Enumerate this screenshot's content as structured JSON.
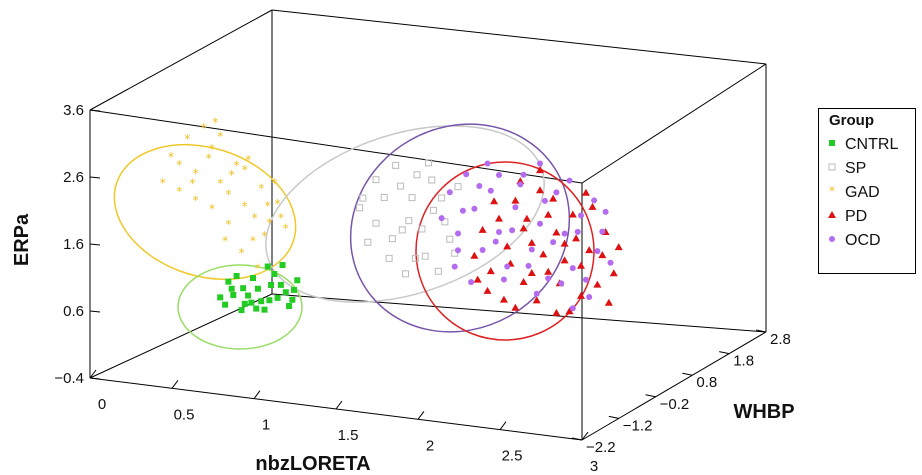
{
  "chart_data": {
    "type": "scatter",
    "mode": "3d",
    "xlabel": "nbzLORETA",
    "ylabel": "ERPa",
    "zlabel": "WHBP",
    "x_ticks": [
      "0",
      "0.5",
      "1",
      "1.5",
      "2",
      "2.5",
      "3"
    ],
    "y_ticks": [
      "−0.4",
      "0.6",
      "1.6",
      "2.6",
      "3.6"
    ],
    "z_ticks": [
      "−2.2",
      "−1.2",
      "−0.2",
      "0.8",
      "1.8",
      "2.8"
    ],
    "xlim": [
      0,
      3
    ],
    "ylim": [
      -0.4,
      3.6
    ],
    "zlim": [
      -2.2,
      2.8
    ],
    "legend_title": "Group",
    "legend_position": "right",
    "series": [
      {
        "name": "CNTRL",
        "color": "#22cc22",
        "marker": "square",
        "points": [
          [
            0.55,
            0.6
          ],
          [
            0.62,
            0.75
          ],
          [
            0.7,
            0.55
          ],
          [
            0.78,
            0.8
          ],
          [
            0.85,
            0.65
          ],
          [
            0.92,
            0.9
          ],
          [
            0.6,
            0.85
          ],
          [
            0.68,
            0.45
          ],
          [
            0.75,
            0.95
          ],
          [
            0.82,
            0.5
          ],
          [
            0.9,
            0.7
          ],
          [
            0.97,
            0.6
          ],
          [
            1.0,
            0.85
          ],
          [
            0.88,
            1.05
          ],
          [
            0.72,
            0.68
          ],
          [
            0.65,
            0.95
          ],
          [
            0.8,
            0.62
          ],
          [
            0.95,
            0.8
          ],
          [
            0.58,
            0.5
          ],
          [
            0.74,
            0.58
          ],
          [
            0.86,
            0.88
          ],
          [
            1.02,
            1.0
          ],
          [
            0.93,
            1.2
          ],
          [
            0.69,
            0.78
          ],
          [
            0.77,
            0.5
          ],
          [
            0.84,
            1.15
          ],
          [
            0.99,
            0.7
          ],
          [
            0.63,
            0.66
          ]
        ]
      },
      {
        "name": "SP",
        "color": "#bbbbbb",
        "marker": "open-square",
        "points": [
          [
            1.4,
            2.2
          ],
          [
            1.5,
            2.0
          ],
          [
            1.55,
            2.4
          ],
          [
            1.6,
            1.8
          ],
          [
            1.65,
            2.6
          ],
          [
            1.7,
            2.1
          ],
          [
            1.75,
            2.8
          ],
          [
            1.8,
            1.6
          ],
          [
            1.85,
            2.3
          ],
          [
            1.9,
            2.5
          ],
          [
            1.95,
            1.9
          ],
          [
            2.0,
            2.7
          ],
          [
            1.45,
            1.7
          ],
          [
            1.58,
            1.5
          ],
          [
            1.68,
            1.3
          ],
          [
            1.78,
            2.0
          ],
          [
            1.88,
            1.4
          ],
          [
            1.62,
            2.9
          ],
          [
            1.72,
            2.45
          ],
          [
            1.82,
            3.0
          ],
          [
            1.92,
            2.15
          ],
          [
            1.5,
            2.65
          ],
          [
            1.98,
            1.7
          ],
          [
            1.42,
            2.35
          ],
          [
            1.66,
            1.95
          ],
          [
            1.84,
            2.75
          ],
          [
            1.74,
            1.55
          ]
        ]
      },
      {
        "name": "GAD",
        "color": "#f0c020",
        "marker": "star",
        "points": [
          [
            0.2,
            2.2
          ],
          [
            0.3,
            2.5
          ],
          [
            0.4,
            2.0
          ],
          [
            0.5,
            2.8
          ],
          [
            0.55,
            2.3
          ],
          [
            0.6,
            1.7
          ],
          [
            0.65,
            2.6
          ],
          [
            0.7,
            2.0
          ],
          [
            0.75,
            1.5
          ],
          [
            0.8,
            2.3
          ],
          [
            0.85,
            1.8
          ],
          [
            0.9,
            2.1
          ],
          [
            0.35,
            2.9
          ],
          [
            0.45,
            3.1
          ],
          [
            0.55,
            3.0
          ],
          [
            0.62,
            2.45
          ],
          [
            0.72,
            2.7
          ],
          [
            0.82,
            1.6
          ],
          [
            0.92,
            1.9
          ],
          [
            0.68,
            1.3
          ],
          [
            0.78,
            1.1
          ],
          [
            0.5,
            1.9
          ],
          [
            0.4,
            2.4
          ],
          [
            0.3,
            2.1
          ],
          [
            0.25,
            2.6
          ],
          [
            0.6,
            2.15
          ],
          [
            0.7,
            2.55
          ],
          [
            0.88,
            2.4
          ],
          [
            0.95,
            1.75
          ],
          [
            0.58,
            1.45
          ],
          [
            0.48,
            2.65
          ],
          [
            0.38,
            2.25
          ],
          [
            0.52,
            3.2
          ],
          [
            0.84,
            2.05
          ],
          [
            0.76,
            1.85
          ]
        ]
      },
      {
        "name": "PD",
        "color": "#dd1111",
        "marker": "triangle",
        "points": [
          [
            2.1,
            1.7
          ],
          [
            2.15,
            2.1
          ],
          [
            2.2,
            1.5
          ],
          [
            2.25,
            2.3
          ],
          [
            2.3,
            1.9
          ],
          [
            2.35,
            2.6
          ],
          [
            2.4,
            1.4
          ],
          [
            2.45,
            2.0
          ],
          [
            2.5,
            2.8
          ],
          [
            2.55,
            1.6
          ],
          [
            2.6,
            2.2
          ],
          [
            2.65,
            1.8
          ],
          [
            2.7,
            2.5
          ],
          [
            2.75,
            1.3
          ],
          [
            2.8,
            2.0
          ],
          [
            2.85,
            1.5
          ],
          [
            2.9,
            2.3
          ],
          [
            2.95,
            1.7
          ],
          [
            2.18,
            1.2
          ],
          [
            2.28,
            1.1
          ],
          [
            2.38,
            2.9
          ],
          [
            2.48,
            1.15
          ],
          [
            2.58,
            2.7
          ],
          [
            2.68,
            1.05
          ],
          [
            2.78,
            2.85
          ],
          [
            2.88,
            1.95
          ],
          [
            2.22,
            2.55
          ],
          [
            2.32,
            1.65
          ],
          [
            2.42,
            2.35
          ],
          [
            2.52,
            1.85
          ],
          [
            2.62,
            1.45
          ],
          [
            2.72,
            2.15
          ],
          [
            2.82,
            2.65
          ],
          [
            2.92,
            1.25
          ],
          [
            2.12,
            1.35
          ],
          [
            2.45,
            1.55
          ],
          [
            2.55,
            2.45
          ],
          [
            2.65,
            2.05
          ],
          [
            2.35,
            1.0
          ],
          [
            2.75,
            1.75
          ],
          [
            2.98,
            2.1
          ],
          [
            2.5,
            3.1
          ],
          [
            2.6,
            1.0
          ],
          [
            2.4,
            2.2
          ]
        ]
      },
      {
        "name": "OCD",
        "color": "#b36bf0",
        "marker": "circle",
        "points": [
          [
            1.9,
            2.2
          ],
          [
            1.95,
            2.6
          ],
          [
            2.0,
            2.0
          ],
          [
            2.05,
            2.9
          ],
          [
            2.1,
            2.4
          ],
          [
            2.15,
            1.8
          ],
          [
            2.2,
            2.7
          ],
          [
            2.25,
            2.1
          ],
          [
            2.3,
            1.6
          ],
          [
            2.35,
            2.5
          ],
          [
            2.4,
            3.0
          ],
          [
            2.45,
            1.9
          ],
          [
            2.5,
            2.3
          ],
          [
            2.55,
            1.5
          ],
          [
            2.6,
            2.8
          ],
          [
            2.65,
            2.2
          ],
          [
            2.7,
            1.7
          ],
          [
            2.75,
            2.5
          ],
          [
            2.8,
            1.3
          ],
          [
            2.85,
            2.0
          ],
          [
            2.9,
            2.6
          ],
          [
            1.98,
            1.5
          ],
          [
            2.08,
            1.3
          ],
          [
            2.18,
            3.1
          ],
          [
            2.28,
            1.4
          ],
          [
            2.38,
            2.85
          ],
          [
            2.48,
            1.25
          ],
          [
            2.58,
            2.05
          ],
          [
            2.68,
            3.0
          ],
          [
            2.78,
            1.55
          ],
          [
            2.88,
            2.3
          ],
          [
            2.03,
            2.35
          ],
          [
            2.13,
            2.75
          ],
          [
            2.23,
            1.95
          ],
          [
            2.33,
            2.15
          ],
          [
            2.43,
            1.65
          ],
          [
            2.53,
            2.65
          ],
          [
            2.63,
            1.45
          ],
          [
            2.73,
            2.25
          ],
          [
            2.83,
            2.75
          ],
          [
            2.93,
            1.85
          ],
          [
            2.0,
            1.75
          ],
          [
            2.5,
            3.2
          ],
          [
            2.7,
            1.1
          ],
          [
            2.25,
            2.95
          ]
        ]
      }
    ]
  }
}
